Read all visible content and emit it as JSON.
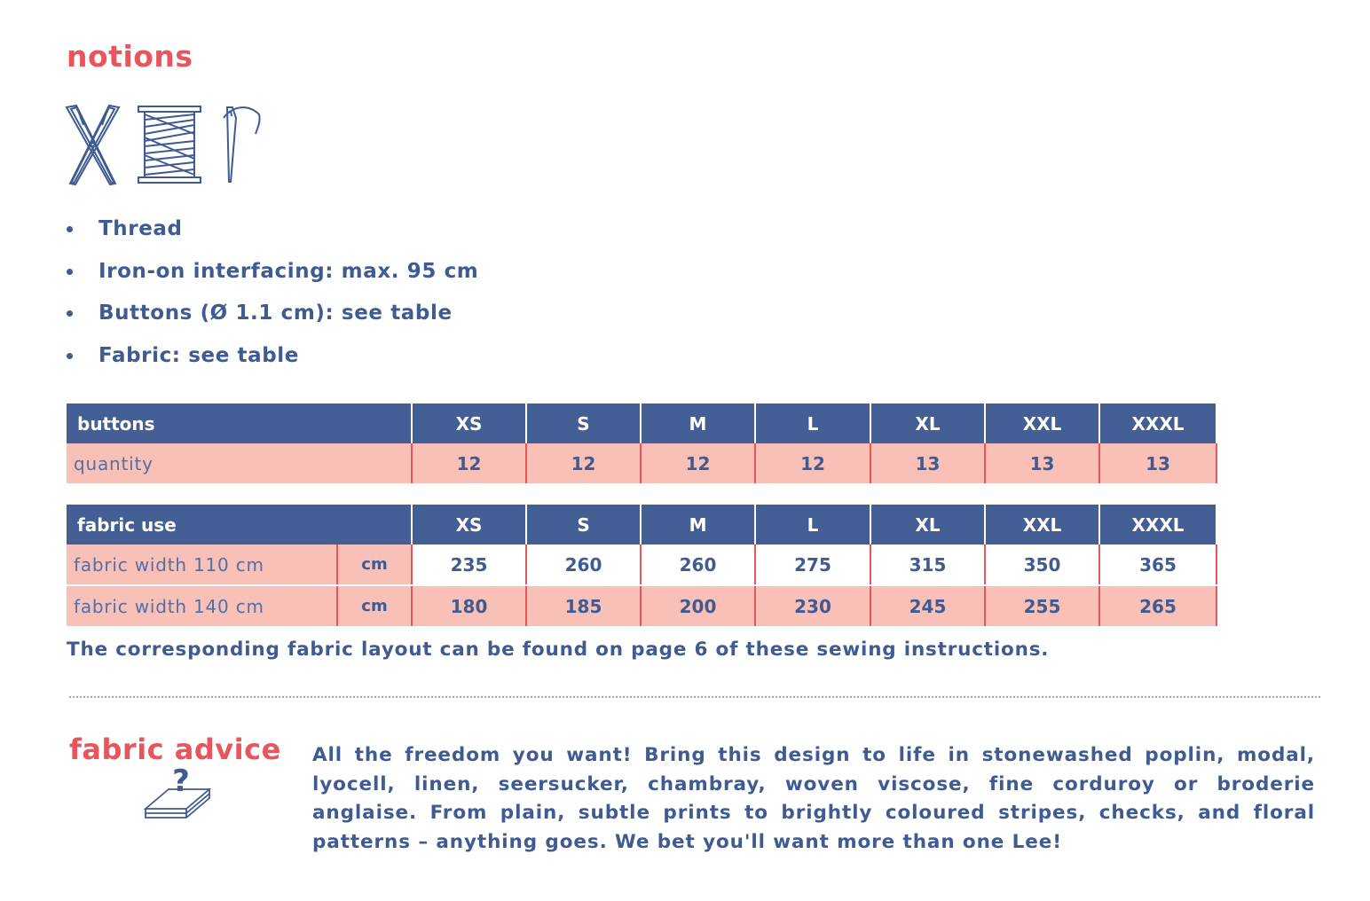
{
  "notions": {
    "title": "notions",
    "icons": [
      "scissors-icon",
      "thread-spool-icon",
      "needle-icon"
    ],
    "items": [
      "Thread",
      "Iron-on interfacing: max. 95 cm",
      "Buttons (Ø 1.1 cm): see table",
      "Fabric: see table"
    ]
  },
  "buttons_table": {
    "header": "buttons",
    "sizes": [
      "XS",
      "S",
      "M",
      "L",
      "XL",
      "XXL",
      "XXXL"
    ],
    "rows": [
      {
        "label": "quantity",
        "values": [
          "12",
          "12",
          "12",
          "12",
          "13",
          "13",
          "13"
        ]
      }
    ]
  },
  "fabric_table": {
    "header": "fabric use",
    "sizes": [
      "XS",
      "S",
      "M",
      "L",
      "XL",
      "XXL",
      "XXXL"
    ],
    "rows": [
      {
        "label": "fabric width 110 cm",
        "unit": "cm",
        "values": [
          "235",
          "260",
          "260",
          "275",
          "315",
          "350",
          "365"
        ]
      },
      {
        "label": "fabric width 140 cm",
        "unit": "cm",
        "values": [
          "180",
          "185",
          "200",
          "230",
          "245",
          "255",
          "265"
        ]
      }
    ]
  },
  "layout_note": "The corresponding fabric layout can be found on page 6 of these sewing instructions.",
  "fabric_advice": {
    "title": "fabric advice",
    "icon": "fabric-question-icon",
    "text": "All the freedom you want! Bring this design to life in stonewashed poplin, modal, lyocell, linen, seersucker, chambray, woven viscose, fine corduroy or broderie anglaise. From plain, subtle prints to brightly coloured stripes, checks, and floral patterns – anything goes. We bet you'll want more than one Lee!"
  },
  "colors": {
    "accent": "#e9555c",
    "primary": "#3f5b91",
    "header_bg": "#445e96",
    "row_pink": "#f8c0b7"
  }
}
